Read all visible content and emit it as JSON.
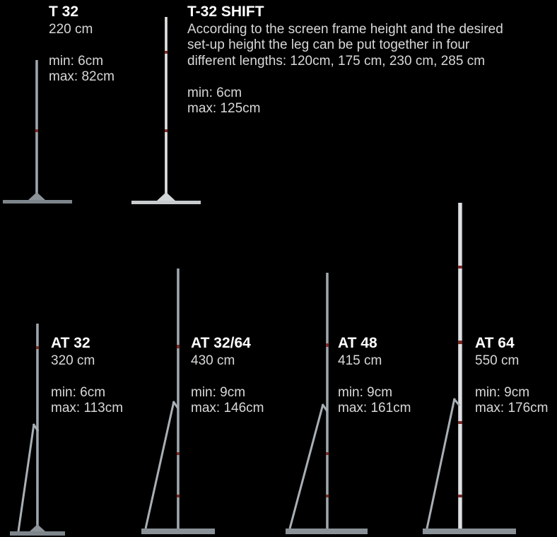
{
  "products": [
    {
      "id": "t32",
      "name": "T 32",
      "length": "220 cm",
      "min": "min: 6cm",
      "max": "max: 82cm"
    },
    {
      "id": "t32-shift",
      "name": "T-32 SHIFT",
      "description": [
        "According to the screen frame height and the desired",
        "set-up height the leg can be put together in four",
        "different lengths: 120cm, 175 cm, 230 cm, 285 cm"
      ],
      "min": "min: 6cm",
      "max": "max: 125cm"
    },
    {
      "id": "at32",
      "name": "AT 32",
      "length": "320 cm",
      "min": "min: 6cm",
      "max": "max: 113cm"
    },
    {
      "id": "at32-64",
      "name": "AT 32/64",
      "length": "430 cm",
      "min": "min: 9cm",
      "max": "max: 146cm"
    },
    {
      "id": "at48",
      "name": "AT 48",
      "length": "415 cm",
      "min": "min: 9cm",
      "max": "max: 161cm"
    },
    {
      "id": "at64",
      "name": "AT 64",
      "length": "550 cm",
      "min": "min: 9cm",
      "max": "max: 176cm"
    }
  ],
  "colors": {
    "background": "#000000",
    "pole": "#9aa2a8",
    "pole_light": "#e4e6e8",
    "joint": "#7a2a24"
  }
}
